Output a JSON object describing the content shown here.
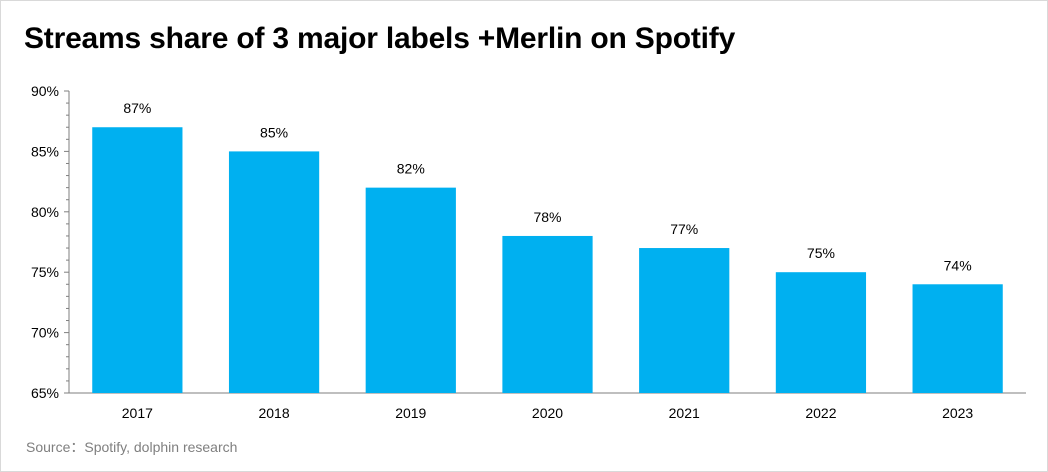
{
  "title": "Streams share of 3 major labels +Merlin on Spotify",
  "source": "Source：Spotify, dolphin research",
  "colors": {
    "bar": "#00B0F0",
    "axis": "#7f7f7f"
  },
  "chart_data": {
    "type": "bar",
    "categories": [
      "2017",
      "2018",
      "2019",
      "2020",
      "2021",
      "2022",
      "2023"
    ],
    "values": [
      87,
      85,
      82,
      78,
      77,
      75,
      74
    ],
    "data_labels": [
      "87%",
      "85%",
      "82%",
      "78%",
      "77%",
      "75%",
      "74%"
    ],
    "ylim": [
      65,
      90
    ],
    "yticks": [
      65,
      70,
      75,
      80,
      85,
      90
    ],
    "ytick_labels": [
      "65%",
      "70%",
      "75%",
      "80%",
      "85%",
      "90%"
    ],
    "grid": false,
    "legend": "none"
  }
}
